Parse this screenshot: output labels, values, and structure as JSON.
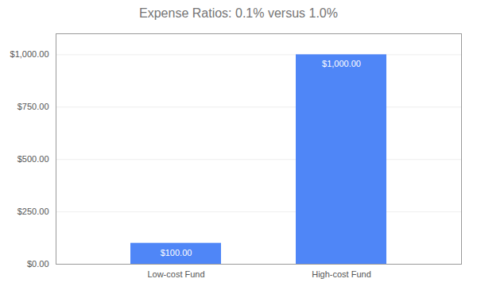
{
  "chart_data": {
    "type": "bar",
    "title": "Expense Ratios: 0.1% versus 1.0%",
    "categories": [
      "Low-cost Fund",
      "High-cost Fund"
    ],
    "values": [
      100,
      1000
    ],
    "value_labels": [
      "$100.00",
      "$1,000.00"
    ],
    "data_labels": true,
    "color": "#4F86F7",
    "ylim": [
      0,
      1100
    ],
    "yticks": [
      {
        "value": 0,
        "label": "$0.00"
      },
      {
        "value": 250,
        "label": "$250.00"
      },
      {
        "value": 500,
        "label": "$500.00"
      },
      {
        "value": 750,
        "label": "$750.00"
      },
      {
        "value": 1000,
        "label": "$1,000.00"
      }
    ],
    "grid": true
  }
}
